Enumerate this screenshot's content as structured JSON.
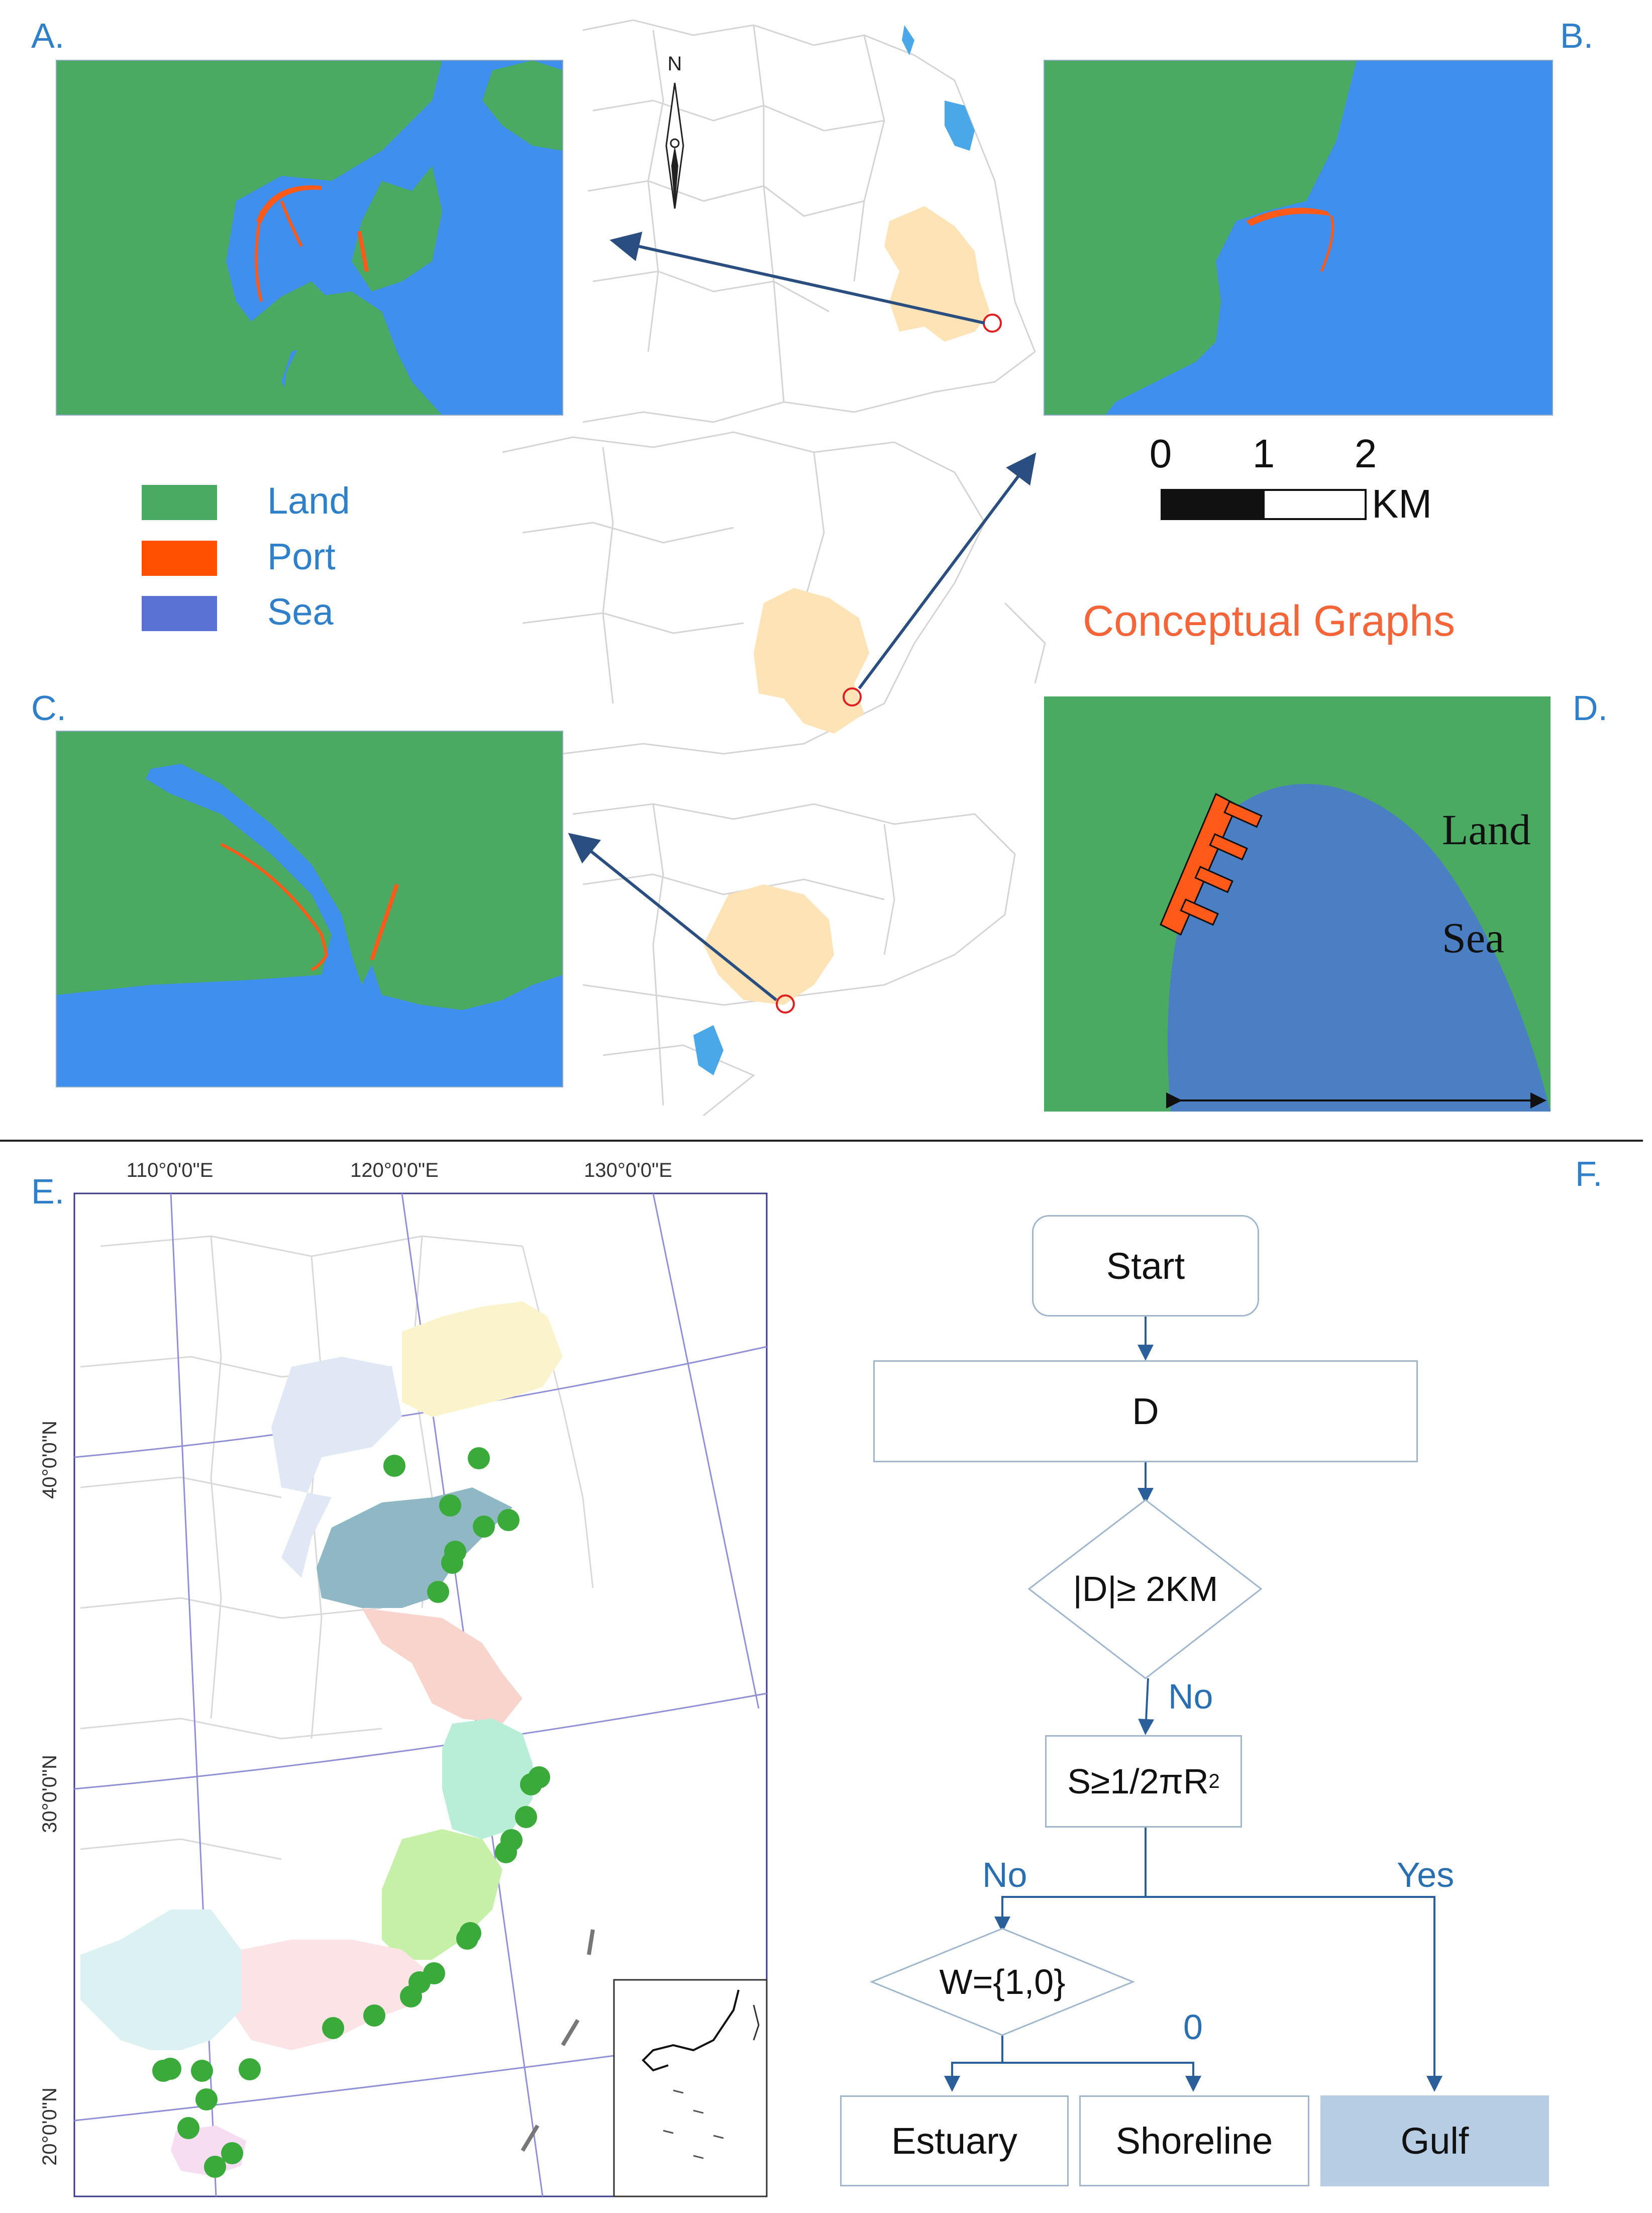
{
  "panels": {
    "a": {
      "letter": "A."
    },
    "b": {
      "letter": "B."
    },
    "c": {
      "letter": "C."
    },
    "d": {
      "letter": "D."
    },
    "e": {
      "letter": "E."
    },
    "f": {
      "letter": "F."
    }
  },
  "north_arrow": {
    "label": "N"
  },
  "legend": [
    {
      "label": "Land",
      "color": "#4aaa62"
    },
    {
      "label": "Port",
      "color": "#ff4f00"
    },
    {
      "label": "Sea",
      "color": "#5a72d4"
    }
  ],
  "scale_bar": {
    "ticks": [
      "0",
      "1",
      "2"
    ],
    "unit": "KM"
  },
  "conceptual": {
    "title": "Conceptual Graphs",
    "land_label": "Land",
    "sea_label": "Sea"
  },
  "colors": {
    "land": "#4aaa62",
    "sea": "#3f8fef",
    "port": "#ff5a1a",
    "accent_blue": "#2f80c8",
    "arrow": "#2a4e7f",
    "title_orange": "#f4663a",
    "highlight_province": "#fde3b5"
  },
  "map_e": {
    "lon_labels": [
      "110°0'0\"E",
      "120°0'0\"E",
      "130°0'0\"E"
    ],
    "lat_labels": [
      "40°0'0\"N",
      "30°0'0\"N",
      "20°0'0\"N"
    ]
  },
  "flowchart": {
    "start": "Start",
    "d_box": "D",
    "decision1": "|D|≥ 2KM",
    "no1": "No",
    "condition": "S≥1/2πR",
    "condition_sup": "2",
    "no2": "No",
    "yes": "Yes",
    "decision2": "W={1,0}",
    "zero": "0",
    "outcomes": [
      "Estuary",
      "Shoreline",
      "Gulf"
    ]
  }
}
